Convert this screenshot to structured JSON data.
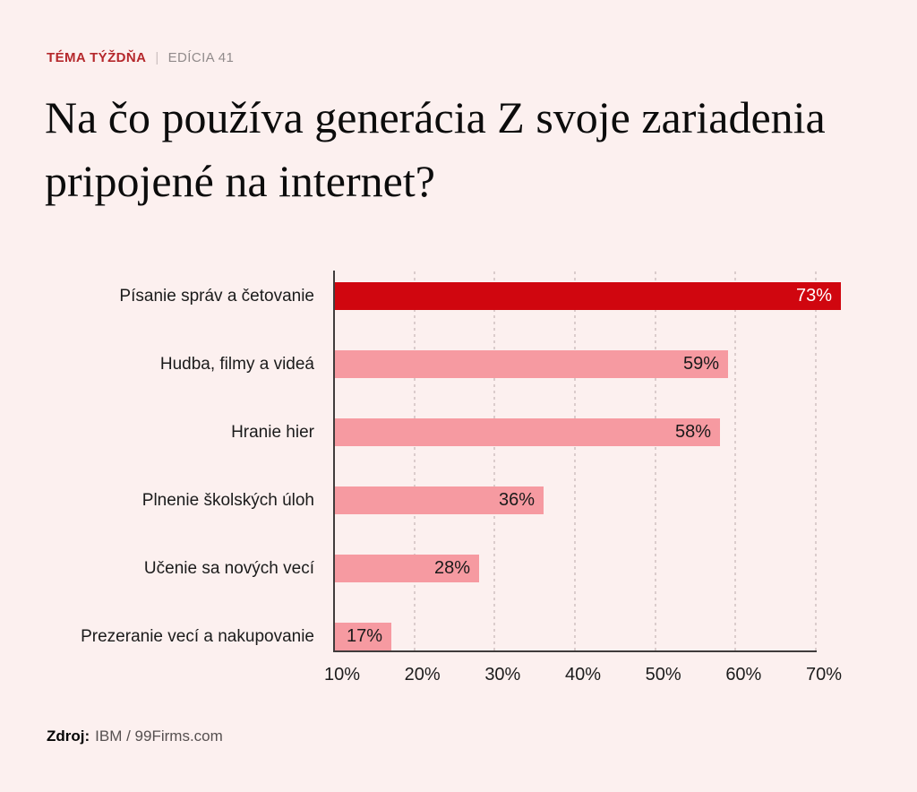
{
  "header": {
    "kicker": "TÉMA TÝŽDŇA",
    "divider": "|",
    "edition": "EDÍCIA 41",
    "kicker_color": "#b5282c",
    "edition_color": "#918b8b"
  },
  "title": "Na čo používa generácia Z svoje zariadenia pripojené na internet?",
  "chart_data": {
    "type": "bar",
    "orientation": "horizontal",
    "title": "Na čo používa generácia Z svoje zariadenia pripojené na internet?",
    "xlabel": "",
    "ylabel": "",
    "categories": [
      "Písanie správ a četovanie",
      "Hudba, filmy a videá",
      "Hranie hier",
      "Plnenie školských úloh",
      "Učenie sa nových vecí",
      "Prezeranie vecí a nakupovanie"
    ],
    "values": [
      73,
      59,
      58,
      36,
      28,
      17
    ],
    "value_labels": [
      "73%",
      "59%",
      "58%",
      "36%",
      "28%",
      "17%"
    ],
    "highlight_index": 0,
    "bar_color_highlight": "#d0060f",
    "bar_color": "#f69aa1",
    "value_color_highlight": "#ffffff",
    "value_color": "#1a1a1a",
    "xlim": [
      10,
      70
    ],
    "x_ticks": [
      "10%",
      "20%",
      "30%",
      "40%",
      "50%",
      "60%",
      "70%"
    ],
    "grid": "vertical-dotted",
    "gridline_color": "#dbcccc",
    "legend": "none",
    "background_color": "#fcf0ef"
  },
  "footer": {
    "label": "Zdroj:",
    "source": "IBM / 99Firms.com"
  }
}
